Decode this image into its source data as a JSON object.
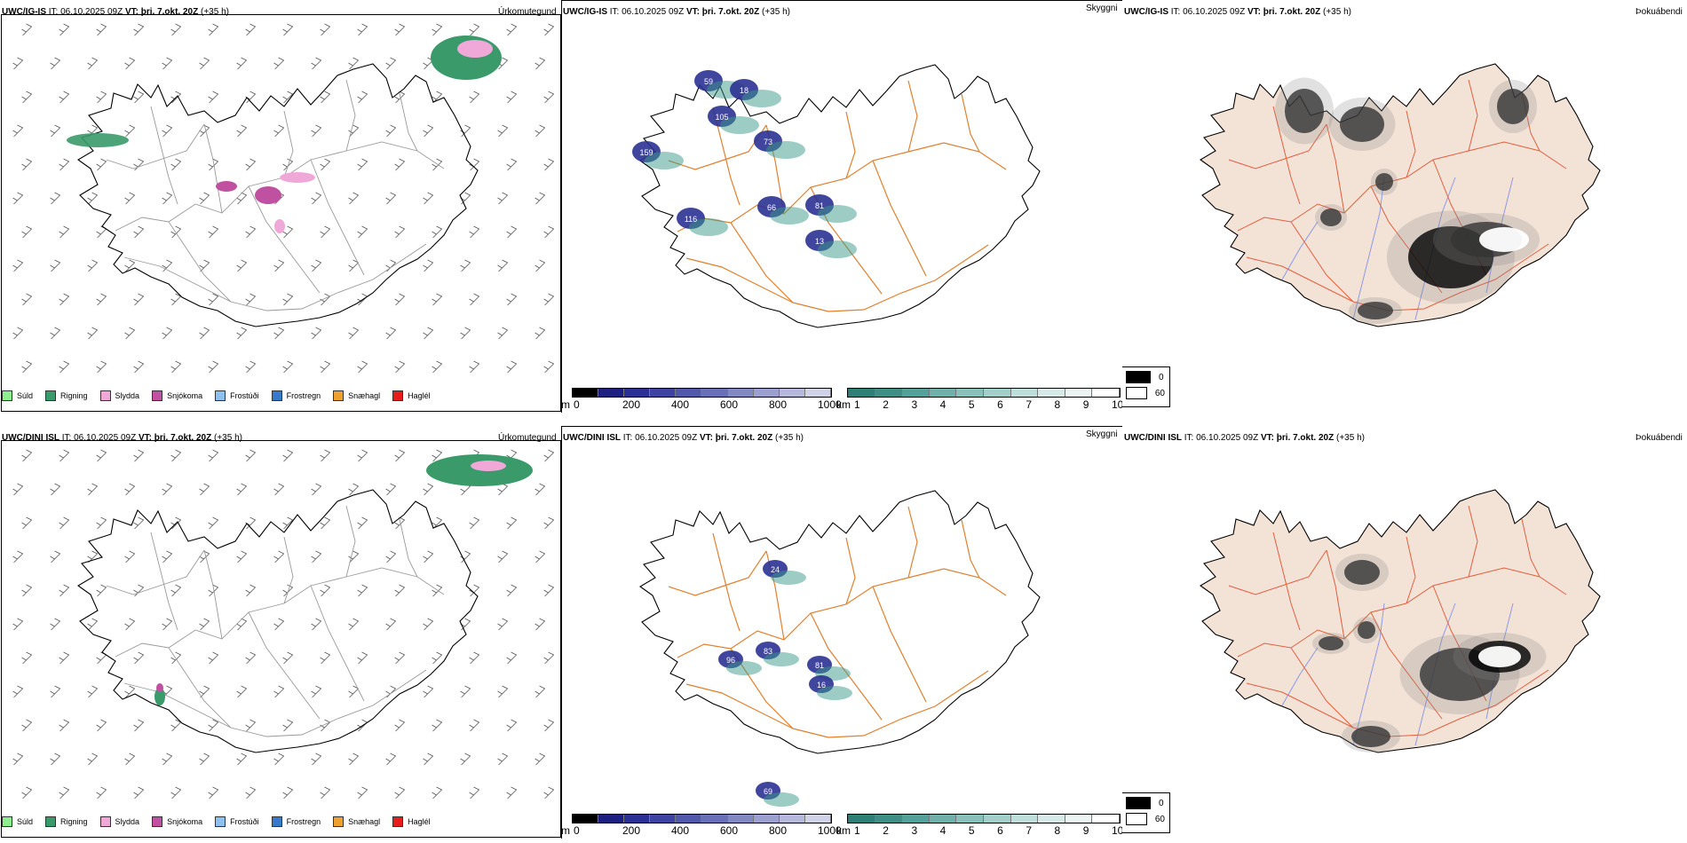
{
  "rows": [
    {
      "model": "UWC/IG-IS",
      "it_label": "IT:",
      "it": "06.10.2025 09Z",
      "vt_label": "VT:",
      "vt": "þri. 7.okt. 20Z",
      "lead": "(+35 h)"
    },
    {
      "model": "UWC/DINI ISL",
      "it_label": "IT:",
      "it": "06.10.2025 09Z",
      "vt_label": "VT:",
      "vt": "þri. 7.okt. 20Z",
      "lead": "(+35 h)"
    }
  ],
  "panels": {
    "precip": "Úrkomutegund",
    "cloud": "Skyggni",
    "fog": "Þokuábendi"
  },
  "precip_legend": [
    {
      "label": "Súld",
      "color": "#90ee90"
    },
    {
      "label": "Rigning",
      "color": "#3a9a6a"
    },
    {
      "label": "Slydda",
      "color": "#f0a8d8"
    },
    {
      "label": "Snjókoma",
      "color": "#c050a0"
    },
    {
      "label": "Frostúði",
      "color": "#8ec0f0"
    },
    {
      "label": "Frostregn",
      "color": "#3a78c8"
    },
    {
      "label": "Snæhagl",
      "color": "#f0a030"
    },
    {
      "label": "Haglél",
      "color": "#e81c1c"
    }
  ],
  "cloudbase_scale": {
    "unit": "m",
    "ticks": [
      "0",
      "200",
      "400",
      "600",
      "800",
      "1000"
    ]
  },
  "visibility_scale": {
    "unit": "km",
    "ticks": [
      "1",
      "2",
      "3",
      "4",
      "5",
      "6",
      "7",
      "8",
      "9",
      "10"
    ]
  },
  "fog_scale": {
    "ticks": [
      "0",
      "60"
    ]
  },
  "cloud_labels_top": [
    "59",
    "18",
    "105",
    "73",
    "66",
    "159",
    "116",
    "81",
    "13"
  ],
  "cloud_labels_bottom": [
    "96",
    "83",
    "81",
    "16",
    "69",
    "24"
  ],
  "colors": {
    "road": "#e08030",
    "river": "#8a9ae8",
    "fogroad": "#e06040",
    "land": "#f3e2d6",
    "cloud": "#2b3192"
  }
}
